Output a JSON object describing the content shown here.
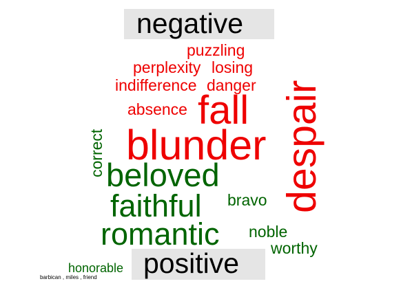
{
  "groups": {
    "negative": {
      "label": "negative",
      "color": "#ee0000",
      "words": {
        "puzzling": "puzzling",
        "perplexity": "perplexity",
        "losing": "losing",
        "indifference": "indifference",
        "danger": "danger",
        "absence": "absence",
        "fall": "fall",
        "blunder": "blunder",
        "despair": "despair"
      }
    },
    "positive": {
      "label": "positive",
      "color": "#006400",
      "words": {
        "correct": "correct",
        "beloved": "beloved",
        "faithful": "faithful",
        "bravo": "bravo",
        "romantic": "romantic",
        "noble": "noble",
        "worthy": "worthy",
        "honorable": "honorable"
      }
    }
  },
  "footnote": "barbican , miles , friend"
}
